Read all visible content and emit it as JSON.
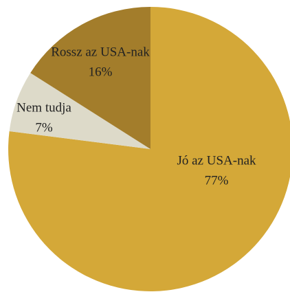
{
  "chart_data": {
    "type": "pie",
    "categories": [
      "Jó az USA-nak",
      "Nem tudja",
      "Rossz az USA-nak"
    ],
    "values": [
      77,
      7,
      16
    ],
    "value_labels": [
      "77%",
      "7%",
      "16%"
    ],
    "colors": [
      "#d4a838",
      "#dddac9",
      "#a37d2b"
    ]
  }
}
